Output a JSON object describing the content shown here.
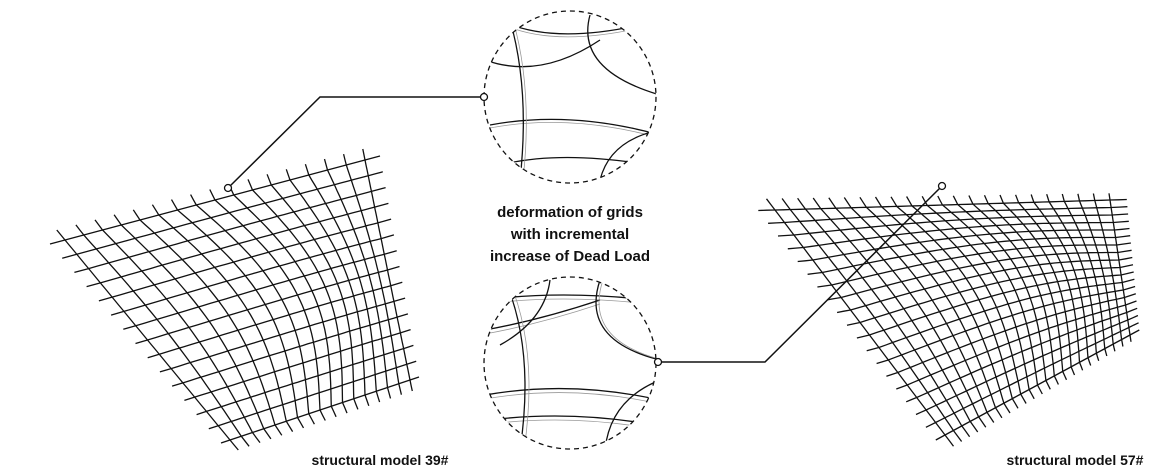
{
  "caption": {
    "lines": [
      "deformation of grids",
      "with incremental",
      "increase of Dead Load"
    ]
  },
  "models": [
    {
      "label": "structural model 39#"
    },
    {
      "label": "structural model 57#"
    }
  ]
}
